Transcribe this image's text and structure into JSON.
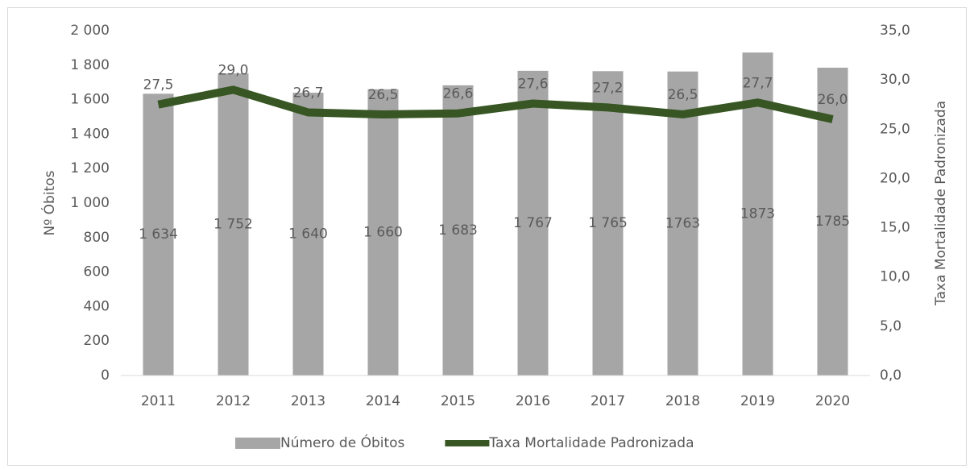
{
  "chart_data": {
    "type": "combo",
    "categories": [
      "2011",
      "2012",
      "2013",
      "2014",
      "2015",
      "2016",
      "2017",
      "2018",
      "2019",
      "2020"
    ],
    "y_label": "Nº Óbitos",
    "y2_label": "Taxa Mortalidade Padronizada",
    "series": [
      {
        "name": "Número de Óbitos",
        "type": "bar",
        "color": "#a6a6a6",
        "values": [
          1634,
          1752,
          1640,
          1660,
          1683,
          1767,
          1765,
          1763,
          1873,
          1785
        ],
        "value_labels": [
          "1 634",
          "1 752",
          "1 640",
          "1 660",
          "1 683",
          "1 767",
          "1 765",
          "1763",
          "1873",
          "1785"
        ]
      },
      {
        "name": "Taxa Mortalidade Padronizada",
        "type": "line",
        "axis": "y2",
        "color": "#375623",
        "values": [
          27.5,
          29.0,
          26.7,
          26.5,
          26.6,
          27.6,
          27.2,
          26.5,
          27.7,
          26.0
        ],
        "value_labels": [
          "27,5",
          "29,0",
          "26,7",
          "26,5",
          "26,6",
          "27,6",
          "27,2",
          "26,5",
          "27,7",
          "26,0"
        ]
      }
    ],
    "ylim": [
      0,
      2000
    ],
    "yticks": [
      0,
      200,
      400,
      600,
      800,
      {
        "value": 1000,
        "label": "1 000"
      },
      {
        "value": 1200,
        "label": "1 200"
      },
      {
        "value": 1400,
        "label": "1 400"
      },
      {
        "value": 1600,
        "label": "1 600"
      },
      {
        "value": 1800,
        "label": "1 800"
      },
      {
        "value": 2000,
        "label": "2 000"
      }
    ],
    "y2lim": [
      0,
      35
    ],
    "y2ticks": [
      {
        "value": 0,
        "label": "0,0"
      },
      {
        "value": 5,
        "label": "5,0"
      },
      {
        "value": 10,
        "label": "10,0"
      },
      {
        "value": 15,
        "label": "15,0"
      },
      {
        "value": 20,
        "label": "20,0"
      },
      {
        "value": 25,
        "label": "25,0"
      },
      {
        "value": 30,
        "label": "30,0"
      },
      {
        "value": 35,
        "label": "35,0"
      }
    ],
    "grid": false,
    "legend": "bottom"
  }
}
